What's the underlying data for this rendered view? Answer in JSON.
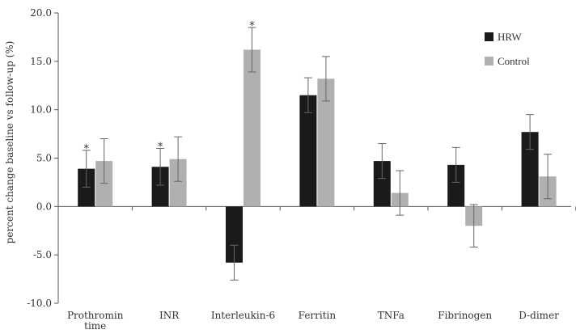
{
  "chart_data": {
    "type": "bar",
    "title": "",
    "xlabel": "",
    "ylabel": "percent change baseline vs follow-up (%)",
    "ylim": [
      -10,
      20
    ],
    "yticks": [
      "-10.0",
      "-5.0",
      "0.0",
      "5.0",
      "10.0",
      "15.0",
      "20.0"
    ],
    "ytick_values": [
      -10,
      -5,
      0,
      5,
      10,
      15,
      20
    ],
    "grid": false,
    "legend_position": "top-right",
    "categories": [
      "Prothromin time",
      "INR",
      "Interleukin-6",
      "Ferritin",
      "TNFa",
      "Fibrinogen",
      "D-dimer"
    ],
    "category_lines": [
      [
        "Prothromin",
        "time"
      ],
      [
        "INR"
      ],
      [
        "Interleukin-6"
      ],
      [
        "Ferritin"
      ],
      [
        "TNFa"
      ],
      [
        "Fibrinogen"
      ],
      [
        "D-dimer"
      ]
    ],
    "series": [
      {
        "name": "HRW",
        "color": "#1a1a1a",
        "values": [
          3.9,
          4.1,
          -5.8,
          11.5,
          4.7,
          4.3,
          7.7
        ],
        "errors": [
          1.9,
          1.9,
          1.8,
          1.8,
          1.8,
          1.8,
          1.8
        ],
        "significant": [
          true,
          true,
          false,
          false,
          false,
          false,
          false
        ]
      },
      {
        "name": "Control",
        "color": "#b0b0b0",
        "values": [
          4.7,
          4.9,
          16.2,
          13.2,
          1.4,
          -2.0,
          3.1
        ],
        "errors": [
          2.3,
          2.3,
          2.3,
          2.3,
          2.3,
          2.2,
          2.3
        ],
        "significant": [
          false,
          false,
          true,
          false,
          false,
          false,
          false
        ]
      }
    ],
    "significance_marker": "*"
  }
}
